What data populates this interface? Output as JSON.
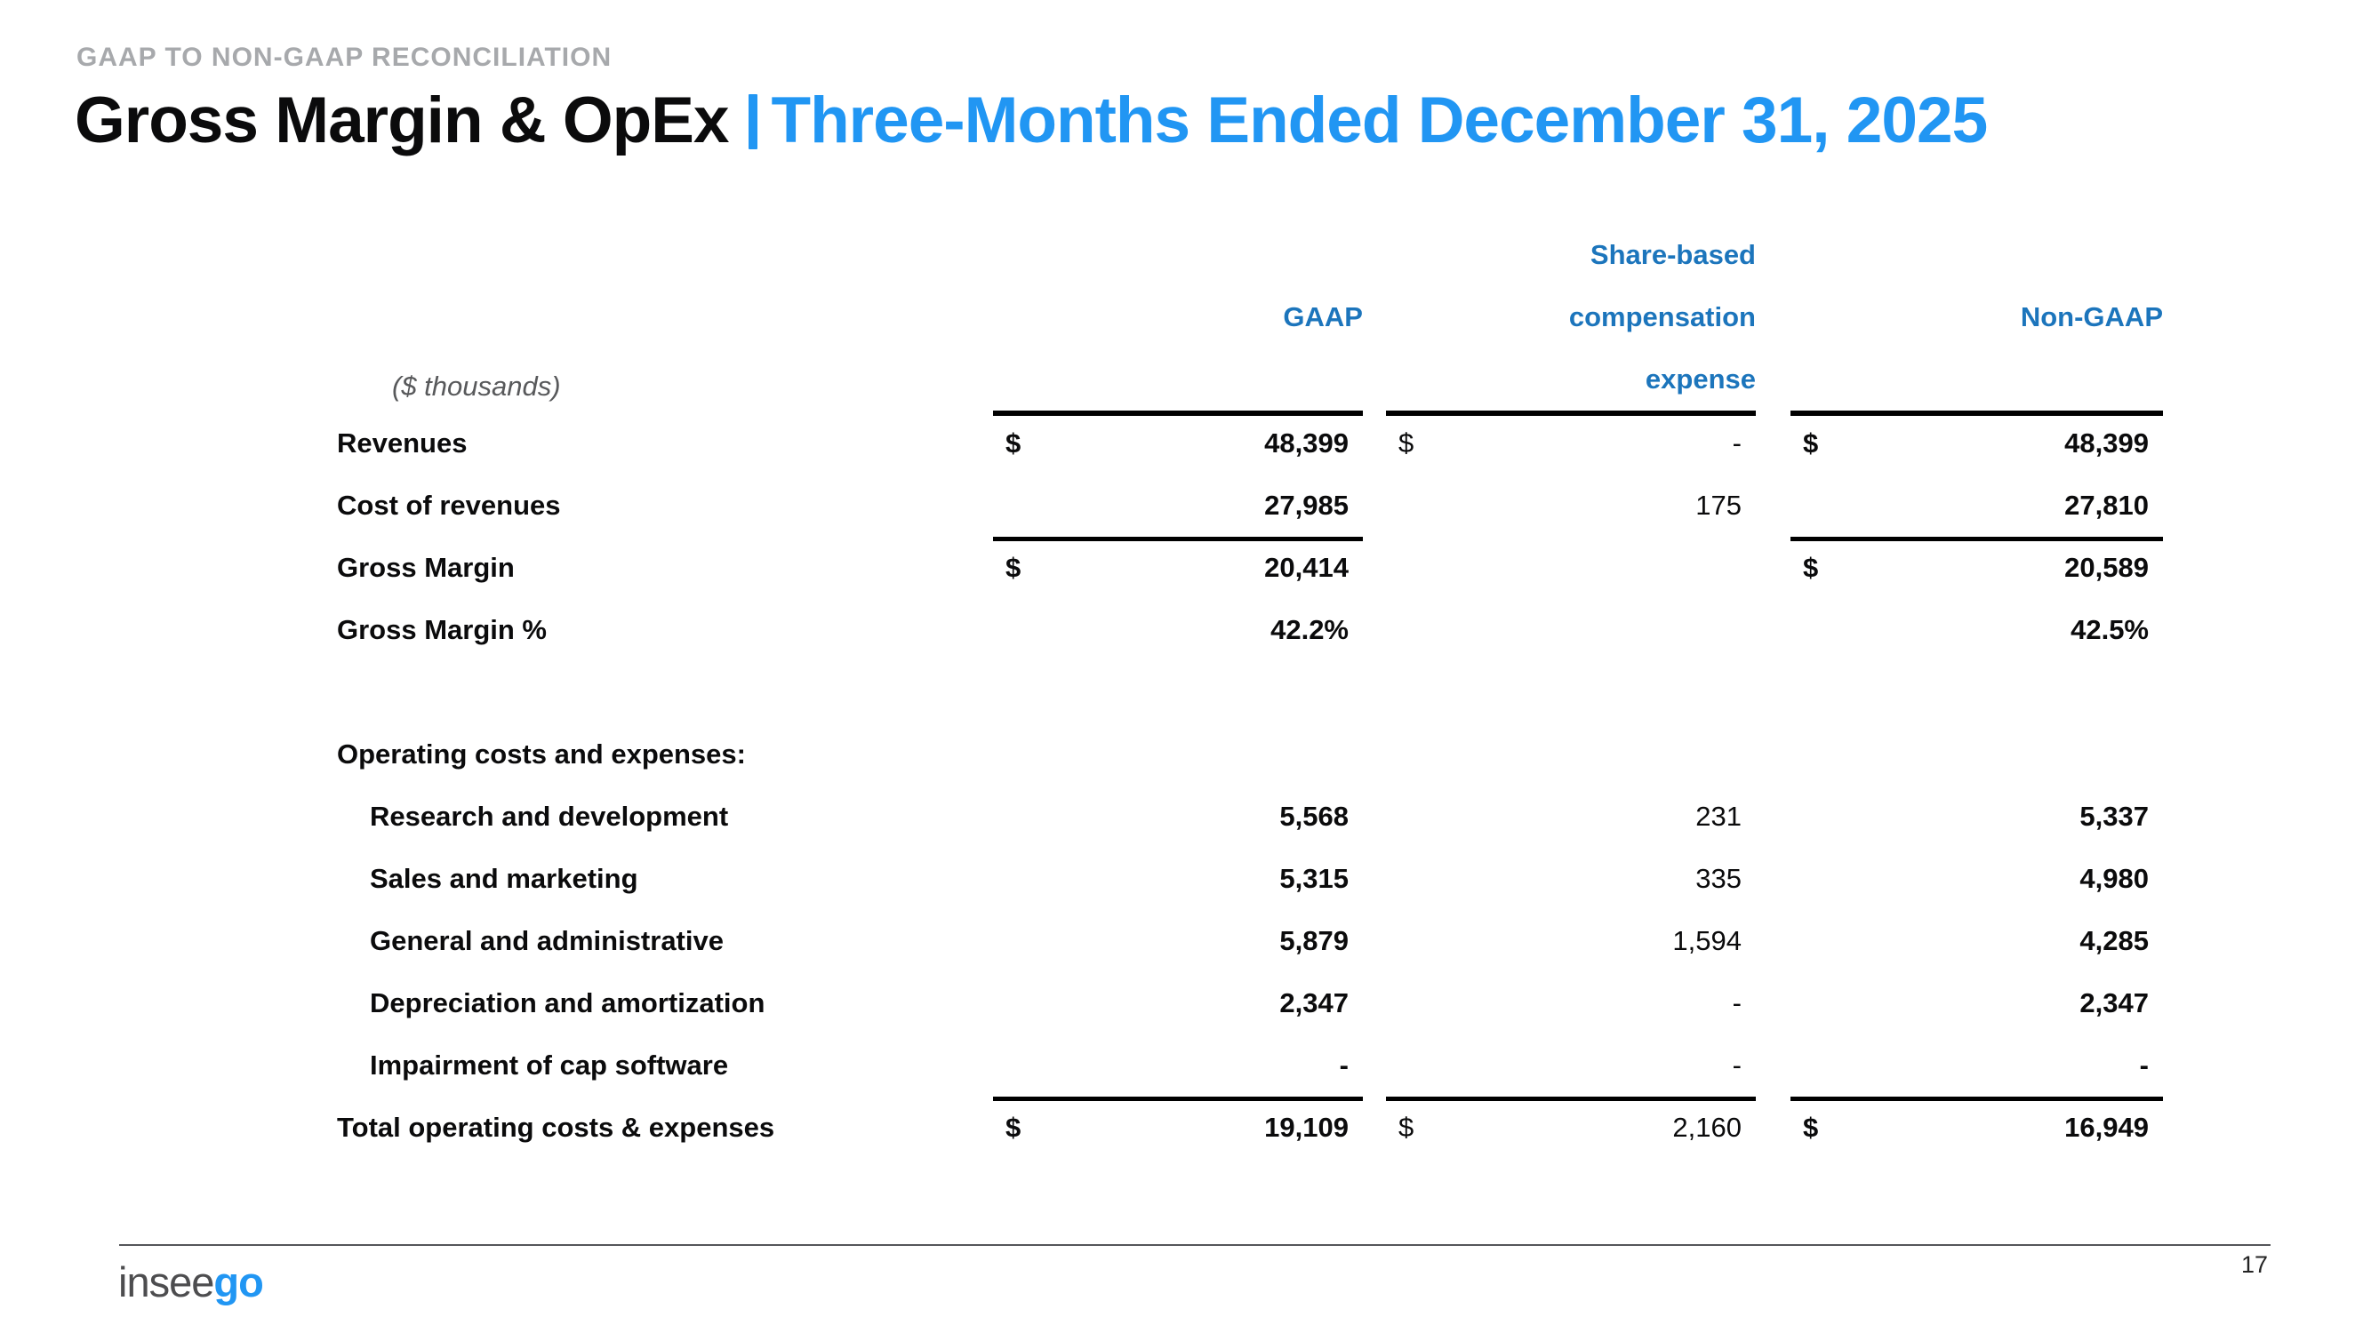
{
  "eyebrow": "GAAP TO NON-GAAP RECONCILIATION",
  "title": {
    "black": "Gross Margin & OpEx",
    "blue": "Three-Months Ended December 31, 2025"
  },
  "colors": {
    "title_blue": "#2196f3",
    "table_header_blue": "#1c75bc",
    "eyebrow_gray": "#a7a9ac",
    "unit_note_gray": "#58595b",
    "text_black": "#0b0b0c"
  },
  "table": {
    "unit_note": "($ thousands)",
    "columns": {
      "gaap": "GAAP",
      "sbc_lines": [
        "Share-based",
        "compensation",
        "expense"
      ],
      "non_gaap": "Non-GAAP"
    },
    "rows": [
      {
        "label": "Revenues",
        "gaap_sym": "$",
        "gaap": "48,399",
        "sbc_sym": "$",
        "sbc": "-",
        "ng_sym": "$",
        "ng": "48,399"
      },
      {
        "label": "Cost of revenues",
        "gaap": "27,985",
        "sbc": "175",
        "ng": "27,810"
      },
      {
        "label": "Gross Margin",
        "gaap_sym": "$",
        "gaap": "20,414",
        "ng_sym": "$",
        "ng": "20,589"
      },
      {
        "label": "Gross Margin %",
        "gaap": "42.2%",
        "ng": "42.5%"
      },
      {
        "label": "Operating costs and expenses:"
      },
      {
        "label": "Research and development",
        "gaap": "5,568",
        "sbc": "231",
        "ng": "5,337"
      },
      {
        "label": "Sales and marketing",
        "gaap": "5,315",
        "sbc": "335",
        "ng": "4,980"
      },
      {
        "label": "General and administrative",
        "gaap": "5,879",
        "sbc": "1,594",
        "ng": "4,285"
      },
      {
        "label": "Depreciation and amortization",
        "gaap": "2,347",
        "sbc": "-",
        "ng": "2,347"
      },
      {
        "label": "Impairment of cap software",
        "gaap": "-",
        "sbc": "-",
        "ng": "-"
      },
      {
        "label": "Total operating costs & expenses",
        "gaap_sym": "$",
        "gaap": "19,109",
        "sbc_sym": "$",
        "sbc": "2,160",
        "ng_sym": "$",
        "ng": "16,949"
      }
    ]
  },
  "footer": {
    "logo_gray": "insee",
    "logo_blue": "go",
    "page_number": "17"
  }
}
